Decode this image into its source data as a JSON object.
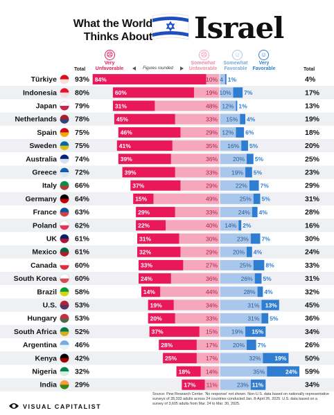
{
  "title": {
    "line1": "What the World",
    "line2": "Thinks About",
    "big": "Israel"
  },
  "legend": {
    "total_left": "Total",
    "total_right": "Total",
    "very_unfavorable": "Very Unfavorable",
    "somewhat_unfavorable": "Somewhat Unfavorable",
    "somewhat_favorable": "Somewhat Favorable",
    "very_favorable": "Very Favorable",
    "rounding_note": "Figures rounded"
  },
  "colors": {
    "very_unfavorable": "#e8185a",
    "somewhat_unfavorable": "#f6a6bd",
    "somewhat_favorable": "#a9c7ea",
    "very_favorable": "#2f7dd1",
    "row_alt": "#eef0f3"
  },
  "chart_data": {
    "type": "bar",
    "stacked": true,
    "diverging": true,
    "categories": [
      "Türkiye",
      "Indonesia",
      "Japan",
      "Netherlands",
      "Spain",
      "Sweden",
      "Australia",
      "Greece",
      "Italy",
      "Germany",
      "France",
      "Poland",
      "UK",
      "Mexico",
      "Canada",
      "South Korea",
      "Brazil",
      "U.S.",
      "Hungary",
      "South Africa",
      "Argentina",
      "Kenya",
      "Nigeria",
      "India"
    ],
    "unfavorable_total": [
      "93%",
      "80%",
      "79%",
      "78%",
      "75%",
      "75%",
      "74%",
      "72%",
      "66%",
      "64%",
      "63%",
      "62%",
      "61%",
      "61%",
      "60%",
      "60%",
      "58%",
      "53%",
      "53%",
      "52%",
      "46%",
      "42%",
      "32%",
      "29%"
    ],
    "favorable_total": [
      "4%",
      "17%",
      "13%",
      "19%",
      "18%",
      "20%",
      "25%",
      "23%",
      "29%",
      "31%",
      "28%",
      "16%",
      "30%",
      "24%",
      "33%",
      "31%",
      "32%",
      "45%",
      "36%",
      "34%",
      "26%",
      "50%",
      "59%",
      "34%"
    ],
    "series": [
      {
        "name": "Very Unfavorable",
        "values": [
          84,
          60,
          31,
          45,
          46,
          41,
          39,
          39,
          37,
          15,
          29,
          22,
          31,
          32,
          33,
          24,
          14,
          19,
          20,
          37,
          28,
          25,
          18,
          17
        ]
      },
      {
        "name": "Somewhat Unfavorable",
        "values": [
          10,
          19,
          48,
          33,
          29,
          35,
          36,
          33,
          29,
          49,
          33,
          40,
          30,
          29,
          27,
          36,
          44,
          34,
          33,
          15,
          17,
          17,
          14,
          11
        ]
      },
      {
        "name": "Somewhat Favorable",
        "values": [
          4,
          10,
          12,
          15,
          12,
          16,
          20,
          19,
          22,
          25,
          24,
          14,
          23,
          20,
          25,
          26,
          28,
          31,
          31,
          19,
          20,
          32,
          35,
          23
        ]
      },
      {
        "name": "Very Favorable",
        "values": [
          1,
          7,
          1,
          4,
          6,
          5,
          5,
          5,
          7,
          5,
          4,
          2,
          7,
          4,
          8,
          5,
          4,
          13,
          5,
          15,
          7,
          19,
          24,
          11
        ]
      }
    ],
    "labels": {
      "very_unfavorable": [
        "84%",
        "60%",
        "31%",
        "45%",
        "46%",
        "41%",
        "39%",
        "39%",
        "37%",
        "15%",
        "29%",
        "22%",
        "31%",
        "32%",
        "33%",
        "24%",
        "14%",
        "19%",
        "20%",
        "37%",
        "28%",
        "25%",
        "18%",
        "17%"
      ],
      "somewhat_unfavorable": [
        "10%",
        "19%",
        "48%",
        "33%",
        "29%",
        "35%",
        "36%",
        "33%",
        "29%",
        "49%",
        "33%",
        "40%",
        "30%",
        "29%",
        "27%",
        "36%",
        "44%",
        "34%",
        "33%",
        "15%",
        "17%",
        "17%",
        "14%",
        "11%"
      ],
      "somewhat_favorable": [
        "4",
        "10%",
        "12%",
        "15%",
        "12%",
        "16%",
        "20%",
        "19%",
        "22%",
        "25%",
        "24%",
        "14%",
        "23%",
        "20%",
        "25%",
        "26%",
        "28%",
        "31%",
        "31%",
        "19%",
        "20%",
        "32%",
        "35%",
        "23%"
      ],
      "very_favorable": [
        "1%",
        "7%",
        "1%",
        "4%",
        "6%",
        "5%",
        "5%",
        "5%",
        "7%",
        "5%",
        "4%",
        "2%",
        "7%",
        "4%",
        "8%",
        "5%",
        "4%",
        "13%",
        "5%",
        "15%",
        "7%",
        "19%",
        "24%",
        "11%"
      ]
    }
  },
  "footer": {
    "source": "Source: Pew Research Center. 'No response' not shown. Non-U.S. data based on nationally representative surveys of 28,333 adults across 24 countries conducted Jan. 8-April 26, 2025. U.S. data based on a survey of 3,605 adults from Mar. 24 to Mar. 30, 2025.",
    "brand": "VISUAL CAPITALIST"
  }
}
